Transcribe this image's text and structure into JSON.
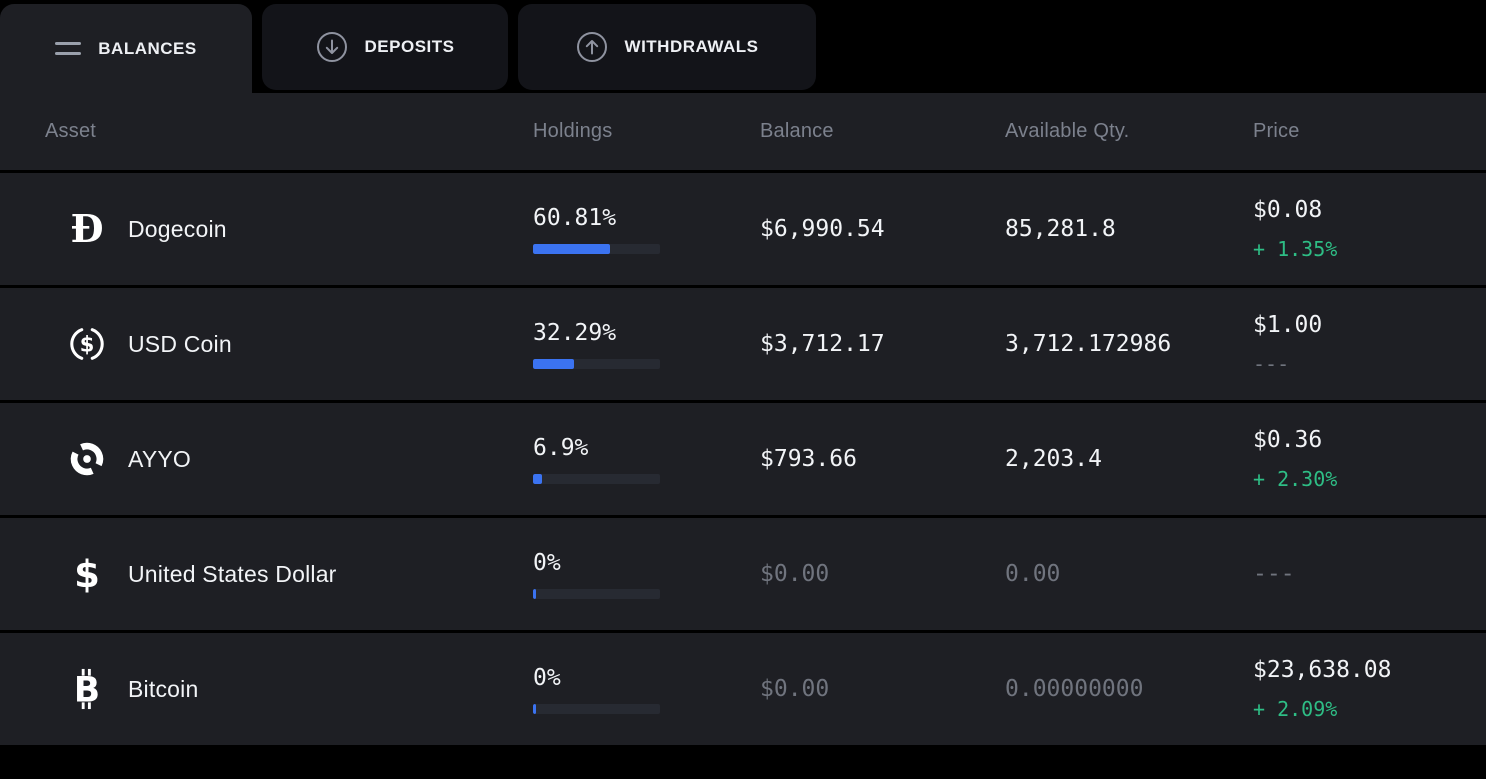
{
  "tabs": [
    {
      "label": "BALANCES",
      "icon": "list-icon",
      "active": true
    },
    {
      "label": "DEPOSITS",
      "icon": "arrow-down-circle-icon",
      "active": false
    },
    {
      "label": "WITHDRAWALS",
      "icon": "arrow-up-circle-icon",
      "active": false
    }
  ],
  "table": {
    "columns": [
      "Asset",
      "Holdings",
      "Balance",
      "Available Qty.",
      "Price"
    ],
    "rows": [
      {
        "asset": "Dogecoin",
        "icon": "dogecoin-icon",
        "holdings_pct": "60.81%",
        "holdings_pct_value": 60.81,
        "balance": "$6,990.54",
        "available_qty": "85,281.8",
        "price": "$0.08",
        "price_change": "+ 1.35%"
      },
      {
        "asset": "USD Coin",
        "icon": "usd-coin-icon",
        "holdings_pct": "32.29%",
        "holdings_pct_value": 32.29,
        "balance": "$3,712.17",
        "available_qty": "3,712.172986",
        "price": "$1.00",
        "price_change": "---"
      },
      {
        "asset": "AYYO",
        "icon": "ayyo-icon",
        "holdings_pct": "6.9%",
        "holdings_pct_value": 6.9,
        "balance": "$793.66",
        "available_qty": "2,203.4",
        "price": "$0.36",
        "price_change": "+ 2.30%"
      },
      {
        "asset": "United States Dollar",
        "icon": "dollar-icon",
        "holdings_pct": "0%",
        "holdings_pct_value": 0,
        "balance": "$0.00",
        "available_qty": "0.00",
        "price": "---",
        "price_change": ""
      },
      {
        "asset": "Bitcoin",
        "icon": "bitcoin-icon",
        "holdings_pct": "0%",
        "holdings_pct_value": 0,
        "balance": "$0.00",
        "available_qty": "0.00000000",
        "price": "$23,638.08",
        "price_change": "+ 2.09%"
      }
    ]
  },
  "colors": {
    "background": "#000000",
    "panel": "#1e1f24",
    "tab_inactive": "#131419",
    "text_primary": "#f2f4f7",
    "text_header": "#7c818d",
    "text_dimmed": "#70747e",
    "positive_green": "#2ebd85",
    "bar_fill_blue": "#3b73f1",
    "bar_track": "#272a32"
  }
}
